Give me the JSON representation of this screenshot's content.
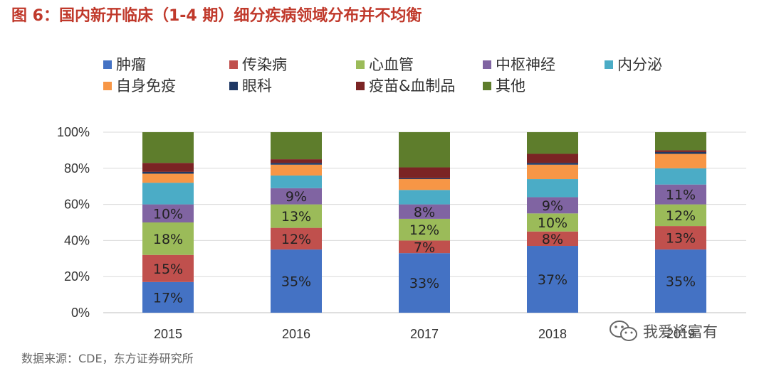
{
  "figure_title": "图 6：国内新开临床（1-4 期）细分疾病领域分布并不均衡",
  "source_text": "数据来源：CDE，东方证券研究所",
  "watermark": {
    "text": "我爱将富有",
    "icon": "wechat-icon"
  },
  "chart_data": {
    "type": "bar",
    "stacked": true,
    "percent_stacked": true,
    "title": "",
    "xlabel": "",
    "ylabel": "",
    "ylim": [
      0,
      100
    ],
    "yticks": [
      "0%",
      "20%",
      "40%",
      "60%",
      "80%",
      "100%"
    ],
    "grid": true,
    "legend_position": "top",
    "categories": [
      "2015",
      "2016",
      "2017",
      "2018",
      "2019"
    ],
    "series": [
      {
        "name": "肿瘤",
        "color": "#4472c4",
        "values": [
          17,
          35,
          33,
          37,
          35
        ],
        "labels": [
          "17%",
          "35%",
          "33%",
          "37%",
          "35%"
        ]
      },
      {
        "name": "传染病",
        "color": "#c0504d",
        "values": [
          15,
          12,
          7,
          8,
          13
        ],
        "labels": [
          "15%",
          "12%",
          "7%",
          "8%",
          "13%"
        ]
      },
      {
        "name": "心血管",
        "color": "#9bbb59",
        "values": [
          18,
          13,
          12,
          10,
          12
        ],
        "labels": [
          "18%",
          "13%",
          "12%",
          "10%",
          "12%"
        ]
      },
      {
        "name": "中枢神经",
        "color": "#8064a2",
        "values": [
          10,
          9,
          8,
          9,
          11
        ],
        "labels": [
          "10%",
          "9%",
          "8%",
          "9%",
          "11%"
        ]
      },
      {
        "name": "内分泌",
        "color": "#4bacc6",
        "values": [
          12,
          7,
          8,
          10,
          9
        ],
        "labels": [
          "",
          "",
          "",
          "",
          ""
        ]
      },
      {
        "name": "自身免疫",
        "color": "#f79646",
        "values": [
          5,
          6,
          6,
          8,
          8
        ],
        "labels": [
          "",
          "",
          "",
          "",
          ""
        ]
      },
      {
        "name": "眼科",
        "color": "#1f3864",
        "values": [
          1,
          1,
          0.5,
          1,
          1
        ],
        "labels": [
          "",
          "",
          "",
          "",
          ""
        ]
      },
      {
        "name": "疫苗&血制品",
        "color": "#7b2424",
        "values": [
          5,
          2,
          6,
          5,
          1
        ],
        "labels": [
          "",
          "",
          "",
          "",
          ""
        ]
      },
      {
        "name": "其他",
        "color": "#5e7d2c",
        "values": [
          17,
          15,
          19.5,
          12,
          10
        ],
        "labels": [
          "",
          "",
          "",
          "",
          ""
        ]
      }
    ]
  }
}
